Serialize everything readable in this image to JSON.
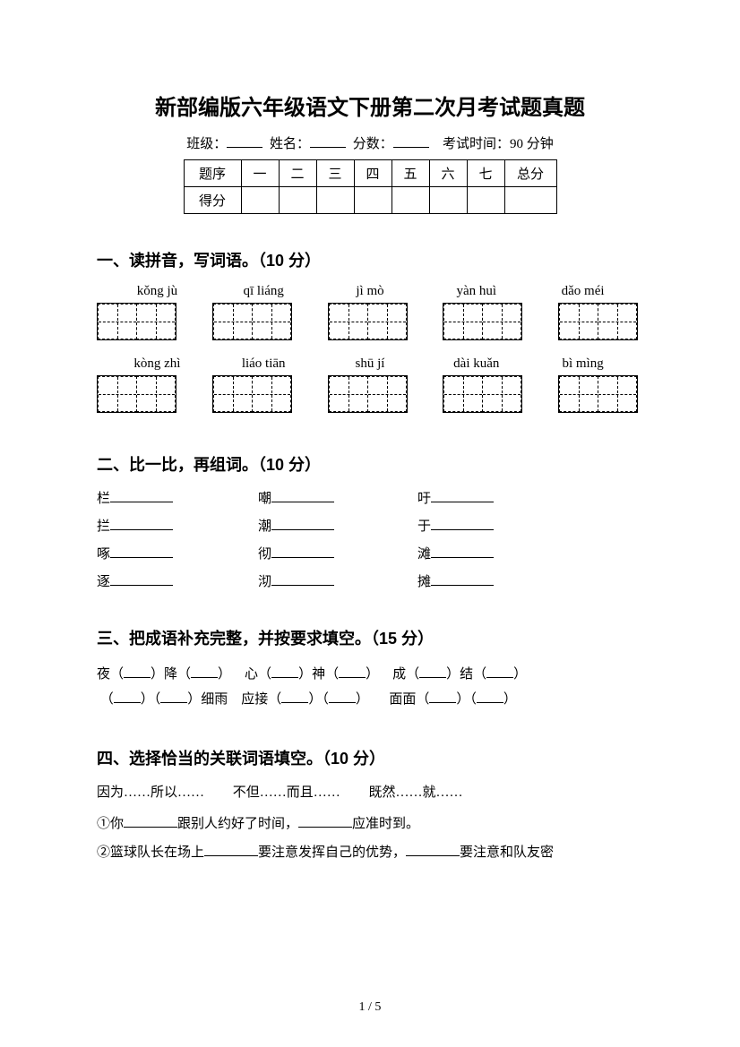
{
  "title": "新部编版六年级语文下册第二次月考试题真题",
  "info": {
    "class_label": "班级：",
    "name_label": "姓名：",
    "score_label": "分数：",
    "time_label": "考试时间：90 分钟"
  },
  "score_table": {
    "row1": [
      "题序",
      "一",
      "二",
      "三",
      "四",
      "五",
      "六",
      "七",
      "总分"
    ],
    "row2_label": "得分"
  },
  "section1": {
    "title": "一、读拼音，写词语。（10 分）",
    "row1_pinyin": [
      "kǒng jù",
      "qī liáng",
      "jì mò",
      "yàn huì",
      "dǎo méi"
    ],
    "row2_pinyin": [
      "kòng zhì",
      "liáo tiān",
      "shū jí",
      "dài kuǎn",
      "bì mìng"
    ]
  },
  "section2": {
    "title": "二、比一比，再组词。（10 分）",
    "pairs": [
      [
        "栏",
        "嘲",
        "吁"
      ],
      [
        "拦",
        "潮",
        "于"
      ],
      [
        "啄",
        "彻",
        "滩"
      ],
      [
        "逐",
        "沏",
        "摊"
      ]
    ]
  },
  "section3": {
    "title": "三、把成语补充完整，并按要求填空。（15 分）",
    "line1_parts": [
      "夜（",
      "）降（",
      "）",
      "心（",
      "）神（",
      "）",
      "成（",
      "）结（",
      "）"
    ],
    "line2_parts": [
      "（",
      "）（",
      "）细雨",
      "应接（",
      "）（",
      "）",
      "面面（",
      "）（",
      "）"
    ]
  },
  "section4": {
    "title": "四、选择恰当的关联词语填空。（10 分）",
    "options": [
      "因为……所以……",
      "不但……而且……",
      "既然……就……"
    ],
    "q1_parts": [
      "①你",
      "跟别人约好了时间，",
      "应准时到。"
    ],
    "q2_parts": [
      "②篮球队长在场上",
      "要注意发挥自己的优势，",
      "要注意和队友密"
    ]
  },
  "page_number": "1 / 5"
}
